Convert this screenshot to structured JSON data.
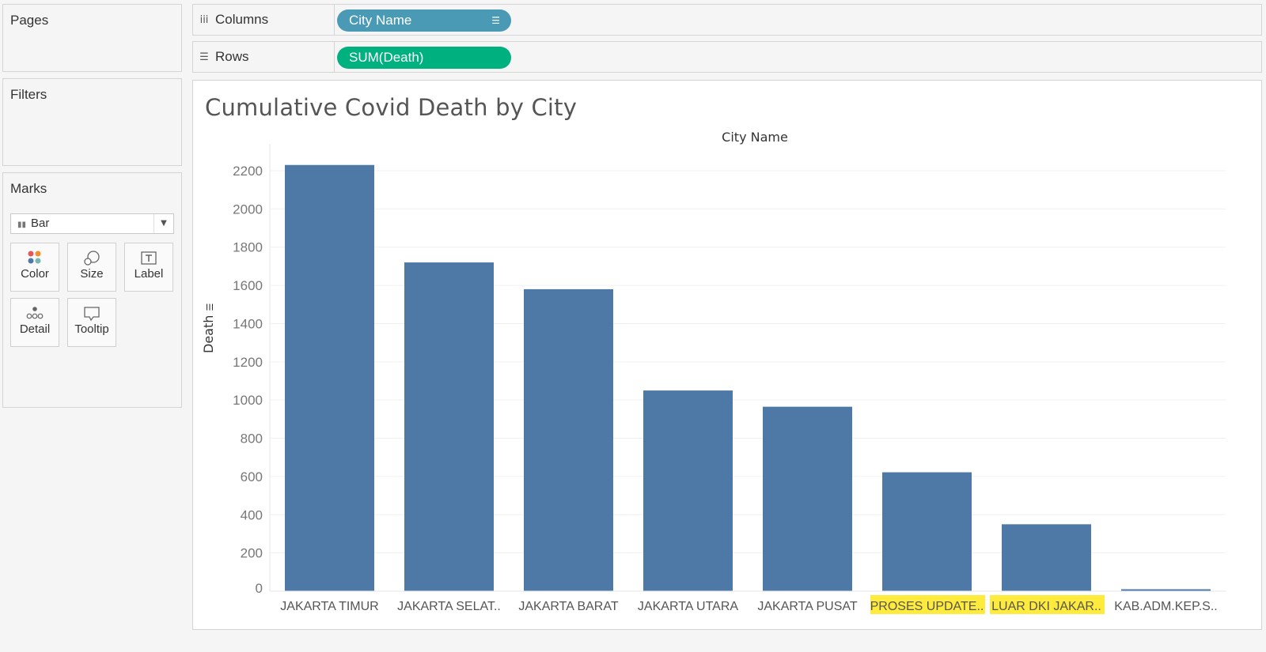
{
  "panels": {
    "pages_label": "Pages",
    "filters_label": "Filters",
    "marks_label": "Marks"
  },
  "shelves": {
    "columns_label": "Columns",
    "columns_pill": "City Name",
    "rows_label": "Rows",
    "rows_pill": "SUM(Death)"
  },
  "marks": {
    "type": "Bar",
    "buttons": [
      {
        "label": "Color",
        "icon": "color-dots-icon"
      },
      {
        "label": "Size",
        "icon": "size-icon"
      },
      {
        "label": "Label",
        "icon": "label-text-icon"
      },
      {
        "label": "Detail",
        "icon": "detail-dots-icon"
      },
      {
        "label": "Tooltip",
        "icon": "tooltip-bubble-icon"
      }
    ]
  },
  "colors": {
    "bar": "#4e79a7",
    "columns_pill": "#4a9ab5",
    "rows_pill": "#00b180",
    "highlight": "#ffeb3b"
  },
  "chart_data": {
    "type": "bar",
    "title": "Cumulative Covid Death by City",
    "xlabel": "City Name",
    "ylabel": "Death",
    "categories": [
      "JAKARTA TIMUR",
      "JAKARTA SELAT..",
      "JAKARTA BARAT",
      "JAKARTA UTARA",
      "JAKARTA PUSAT",
      "PROSES UPDATE..",
      "LUAR DKI JAKAR..",
      "KAB.ADM.KEP.S.."
    ],
    "values": [
      2230,
      1720,
      1580,
      1050,
      965,
      622,
      350,
      10
    ],
    "highlighted_categories": [
      "PROSES UPDATE..",
      "LUAR DKI JAKAR.."
    ],
    "yticks": [
      0,
      200,
      400,
      600,
      800,
      1000,
      1200,
      1400,
      1600,
      1800,
      2000,
      2200
    ],
    "ylim": [
      0,
      2300
    ],
    "grid": true
  }
}
